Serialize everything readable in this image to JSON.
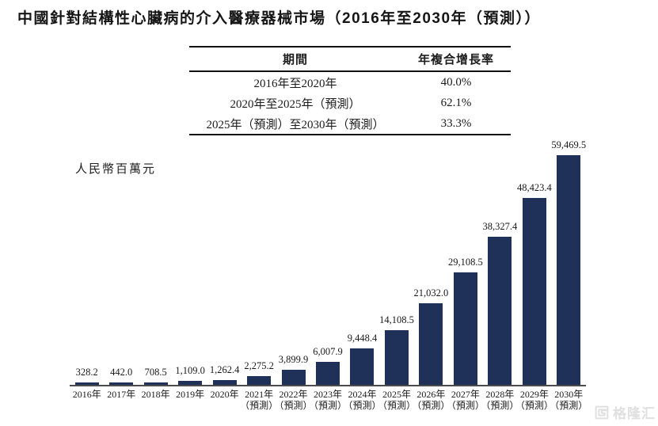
{
  "title": "中國針對結構性心臟病的介入醫療器械市場（2016年至2030年（預測））",
  "table": {
    "headers": [
      "期間",
      "年複合增長率"
    ],
    "rows": [
      {
        "period": "2016年至2020年",
        "cagr": "40.0%"
      },
      {
        "period": "2020年至2025年（預測）",
        "cagr": "62.1%"
      },
      {
        "period": "2025年（預測）至2030年（預測）",
        "cagr": "33.3%"
      }
    ]
  },
  "chart_data": {
    "type": "bar",
    "title": "中國針對結構性心臟病的介入醫療器械市場（2016年至2030年（預測））",
    "unit_label": "人民幣百萬元",
    "xlabel": "",
    "ylabel": "人民幣百萬元",
    "ylim": [
      0,
      59469.5
    ],
    "grid": false,
    "legend": "none",
    "categories": [
      "2016年",
      "2017年",
      "2018年",
      "2019年",
      "2020年",
      "2021年",
      "2022年",
      "2023年",
      "2024年",
      "2025年",
      "2026年",
      "2027年",
      "2028年",
      "2029年",
      "2030年"
    ],
    "forecast_flags": [
      false,
      false,
      false,
      false,
      false,
      true,
      true,
      true,
      true,
      true,
      true,
      true,
      true,
      true,
      true
    ],
    "forecast_suffix": "（預測）",
    "values": [
      328.2,
      442.0,
      708.5,
      1109.0,
      1262.4,
      2275.2,
      3899.9,
      6007.9,
      9448.4,
      14108.5,
      21032.0,
      29108.5,
      38327.4,
      48423.4,
      59469.5
    ],
    "value_labels": [
      "328.2",
      "442.0",
      "708.5",
      "1,109.0",
      "1,262.4",
      "2,275.2",
      "3,899.9",
      "6,007.9",
      "9,448.4",
      "14,108.5",
      "21,032.0",
      "29,108.5",
      "38,327.4",
      "48,423.4",
      "59,469.5"
    ],
    "bar_color": "#1f3158"
  },
  "watermark": {
    "brand": "格隆汇",
    "icon": "gelonghui-logo-icon",
    "color": "#e0e0e0"
  }
}
